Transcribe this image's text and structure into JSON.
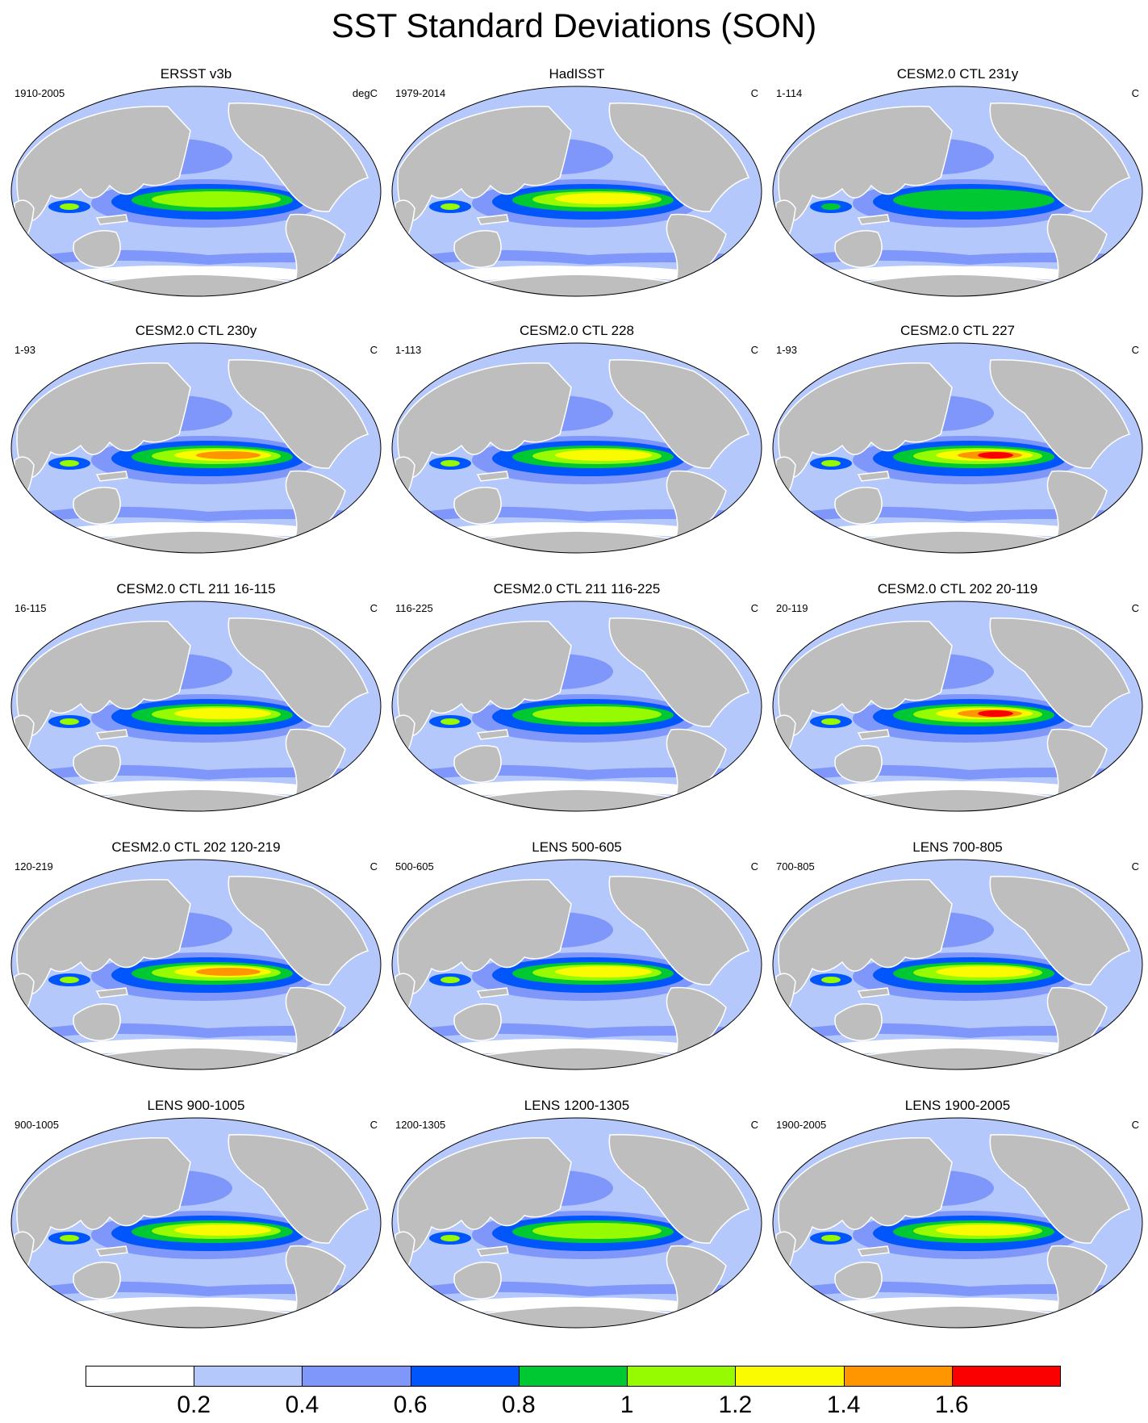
{
  "title": "SST Standard Deviations (SON)",
  "colors": {
    "ocean_base": "#b4c8fb",
    "land": "#bebebe",
    "coast": "#ffffff",
    "levels": [
      "#ffffff",
      "#b4c8fb",
      "#7f96fa",
      "#0056fb",
      "#00c832",
      "#96fa00",
      "#fafa00",
      "#ff9600",
      "#fa0000"
    ]
  },
  "colorbar": {
    "labels": [
      "0.2",
      "0.4",
      "0.6",
      "0.8",
      "1",
      "1.2",
      "1.4",
      "1.6"
    ],
    "colors": [
      "#ffffff",
      "#b4c8fb",
      "#7f96fa",
      "#0056fb",
      "#00c832",
      "#96fa00",
      "#fafa00",
      "#ff9600",
      "#fa0000"
    ]
  },
  "panels": [
    {
      "title": "ERSST v3b",
      "left": "1910-2005",
      "right": "degC",
      "peak": 5
    },
    {
      "title": "HadISST",
      "left": "1979-2014",
      "right": "C",
      "peak": 6
    },
    {
      "title": "CESM2.0 CTL 231y",
      "left": "1-114",
      "right": "C",
      "peak": 4
    },
    {
      "title": "CESM2.0 CTL 230y",
      "left": "1-93",
      "right": "C",
      "peak": 7
    },
    {
      "title": "CESM2.0 CTL 228",
      "left": "1-113",
      "right": "C",
      "peak": 6
    },
    {
      "title": "CESM2.0 CTL 227",
      "left": "1-93",
      "right": "C",
      "peak": 8
    },
    {
      "title": "CESM2.0 CTL 211 16-115",
      "left": "16-115",
      "right": "C",
      "peak": 6
    },
    {
      "title": "CESM2.0 CTL 211 116-225",
      "left": "116-225",
      "right": "C",
      "peak": 5
    },
    {
      "title": "CESM2.0 CTL 202 20-119",
      "left": "20-119",
      "right": "C",
      "peak": 8
    },
    {
      "title": "CESM2.0 CTL 202 120-219",
      "left": "120-219",
      "right": "C",
      "peak": 7
    },
    {
      "title": "LENS 500-605",
      "left": "500-605",
      "right": "C",
      "peak": 6
    },
    {
      "title": "LENS 700-805",
      "left": "700-805",
      "right": "C",
      "peak": 6
    },
    {
      "title": "LENS 900-1005",
      "left": "900-1005",
      "right": "C",
      "peak": 6
    },
    {
      "title": "LENS 1200-1305",
      "left": "1200-1305",
      "right": "C",
      "peak": 5
    },
    {
      "title": "LENS 1900-2005",
      "left": "1900-2005",
      "right": "C",
      "peak": 6
    }
  ]
}
